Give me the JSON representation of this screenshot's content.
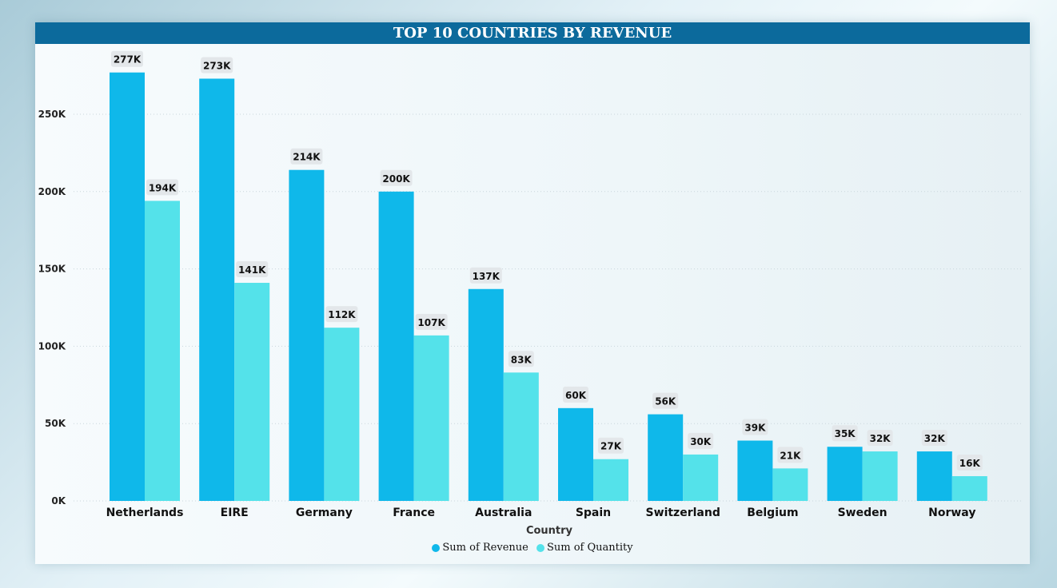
{
  "chart_data": {
    "type": "bar",
    "title": "TOP 10 COUNTRIES BY REVENUE",
    "xlabel": "Country",
    "ylabel": "",
    "categories": [
      "Netherlands",
      "EIRE",
      "Germany",
      "France",
      "Australia",
      "Spain",
      "Switzerland",
      "Belgium",
      "Sweden",
      "Norway"
    ],
    "series": [
      {
        "name": "Sum of Revenue",
        "color": "#0fb8ea",
        "values": [
          277000,
          273000,
          214000,
          200000,
          137000,
          60000,
          56000,
          39000,
          35000,
          32000
        ],
        "labels": [
          "277K",
          "273K",
          "214K",
          "200K",
          "137K",
          "60K",
          "56K",
          "39K",
          "35K",
          "32K"
        ]
      },
      {
        "name": "Sum of Quantity",
        "color": "#54e2ea",
        "values": [
          194000,
          141000,
          112000,
          107000,
          83000,
          27000,
          30000,
          21000,
          32000,
          16000
        ],
        "labels": [
          "194K",
          "141K",
          "112K",
          "107K",
          "83K",
          "27K",
          "30K",
          "21K",
          "32K",
          "16K"
        ]
      }
    ],
    "ylim": [
      0,
      290000
    ],
    "yticks": [
      0,
      50000,
      100000,
      150000,
      200000,
      250000
    ],
    "ytick_labels": [
      "0K",
      "50K",
      "100K",
      "150K",
      "200K",
      "250K"
    ],
    "grid": true,
    "legend_position": "bottom-center"
  }
}
